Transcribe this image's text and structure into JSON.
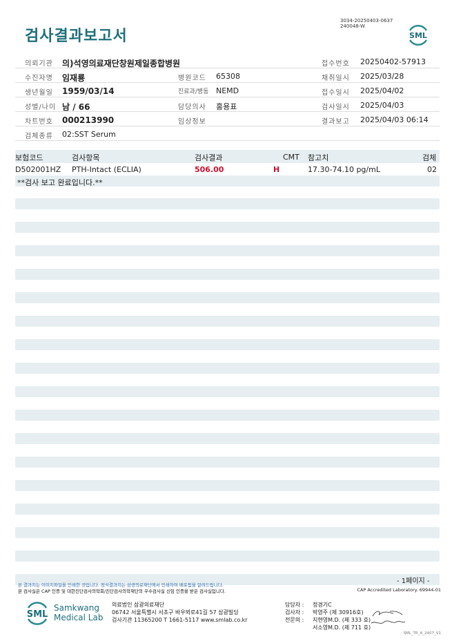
{
  "header": {
    "title": "검사결과보고서",
    "doc_code_1": "3034-20250403-0637",
    "doc_code_2": "240048-W",
    "logo": "SML"
  },
  "info": {
    "row1": {
      "l1": "의뢰기관",
      "v1": "의)석영의료재단창원제일종합병원",
      "l3": "접수번호",
      "v3": "20250402-57913"
    },
    "row2": {
      "l1": "수진자명",
      "v1": "임재룡",
      "l2": "병원코드",
      "v2": "65308",
      "l3": "채취일시",
      "v3": "2025/03/28"
    },
    "row3": {
      "l1": "생년월일",
      "v1": "1959/03/14",
      "l2": "진료과/병동",
      "v2": "NEMD",
      "l3": "접수일시",
      "v3": "2025/04/02"
    },
    "row4": {
      "l1": "성별/나이",
      "v1": "남 / 66",
      "l2": "담당의사",
      "v2": "홍용표",
      "l3": "검사일시",
      "v3": "2025/04/03"
    },
    "row5": {
      "l1": "차트번호",
      "v1": "000213990",
      "l2": "임상정보",
      "v2": "",
      "l3": "결과보고",
      "v3": "2025/04/03 06:14"
    },
    "row6": {
      "l1": "검체종류",
      "v1": "02:SST Serum"
    }
  },
  "table": {
    "headers": {
      "code": "보험코드",
      "item": "검사항목",
      "result": "검사결과",
      "cmt": "CMT",
      "ref": "참고치",
      "specimen": "검체"
    },
    "rows": [
      {
        "code": "D502001HZ",
        "item": "PTH-Intact (ECLIA)",
        "result": "506.00",
        "cmt": "H",
        "ref": "17.30-74.10 pg/mL",
        "specimen": "02"
      }
    ],
    "comment": "**검사 보고 완료입니다.**"
  },
  "footer": {
    "page": "- 1페이지 -",
    "notice1": "본 결과지는 이미지파일을 인쇄한 것입니다. 정식결과지는 삼광의료재단에서 인쇄하여 배포됨을 알려드립니다.",
    "notice2": "본 검사실은 CAP 인증 및 대한진단검사의학회/진단검사의학재단의 우수검사실 신임 인증을 받은 검사실입니다.",
    "cap": "CAP Accredited Laboratory. 69944-01",
    "lab_name_1": "Samkwang",
    "lab_name_2": "Medical Lab",
    "logo": "SML",
    "org": "의료법인 삼광의료재단",
    "address": "06742 서울특별시 서초구 바우뫼로41길 57 삼광빌딩",
    "contact": "검사기관 11365200 T 1661-5117 www.smlab.co.kr",
    "staff": [
      {
        "label": "담당자 :",
        "name": "정경기C"
      },
      {
        "label": "검사자 :",
        "name": "박영주 (제 30916호)"
      },
      {
        "label": "전문의 :",
        "name": "지현영M.D. (제 333 호)"
      },
      {
        "label": "",
        "name": "서소영M.D. (제 711 호)"
      }
    ],
    "form_code": "SML_TR_A_2407_V1"
  }
}
